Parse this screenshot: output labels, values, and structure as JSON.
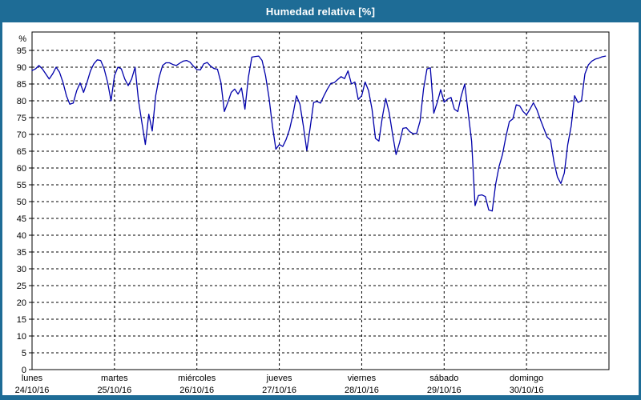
{
  "window": {
    "title": "Humedad relativa [%]"
  },
  "colors": {
    "frame": "#1e6c96",
    "frame_edge": "#0f4e78",
    "background": "#ffffff",
    "plot_border": "#000000",
    "grid": "#000000",
    "text": "#000000",
    "title_text": "#ffffff",
    "line": "#0000aa"
  },
  "chart_data": {
    "type": "line",
    "title": "Humedad relativa [%]",
    "ylabel": "%",
    "ylim": [
      0,
      100
    ],
    "ytick_step": 5,
    "ytick_label_max": 95,
    "grid": true,
    "legend": "none",
    "points_per_day": 24,
    "x_unit": "hour",
    "days": [
      {
        "name": "lunes",
        "date": "24/10/16"
      },
      {
        "name": "martes",
        "date": "25/10/16"
      },
      {
        "name": "miércoles",
        "date": "26/10/16"
      },
      {
        "name": "jueves",
        "date": "27/10/16"
      },
      {
        "name": "viernes",
        "date": "28/10/16"
      },
      {
        "name": "sábado",
        "date": "29/10/16"
      },
      {
        "name": "domingo",
        "date": "30/10/16"
      }
    ],
    "series": [
      {
        "name": "Humedad relativa",
        "color": "#0000aa",
        "values": [
          89,
          89.5,
          90.5,
          89.5,
          88,
          86.5,
          88,
          90,
          88.5,
          85.5,
          81.5,
          79,
          79.3,
          83,
          85.3,
          82.5,
          85.5,
          88.9,
          91,
          92.2,
          92,
          89.5,
          85.5,
          80,
          87.5,
          90,
          89.5,
          86.5,
          84.5,
          86.5,
          90,
          80,
          73.5,
          67,
          76,
          71,
          81.5,
          87,
          90.5,
          91.3,
          91.3,
          90.8,
          90.5,
          91.2,
          91.8,
          92,
          91.5,
          90.3,
          89.3,
          89.2,
          91,
          91.4,
          90.3,
          89.6,
          89.4,
          85.5,
          76.8,
          79.5,
          82.5,
          83.5,
          82,
          83.8,
          77.5,
          87,
          93,
          93.2,
          93.3,
          92,
          87.5,
          81,
          72.5,
          65.6,
          67,
          66.4,
          68.5,
          71.5,
          76,
          81.5,
          79,
          72.5,
          65.2,
          72,
          79.5,
          79.8,
          79.3,
          81.5,
          83.5,
          85.2,
          85.4,
          86.3,
          87.2,
          86.6,
          88.9,
          85,
          85.6,
          80.4,
          81.5,
          85.6,
          83,
          77.5,
          68.8,
          68,
          75,
          80.7,
          76.5,
          70,
          64,
          67.5,
          71.8,
          72,
          70.8,
          70.2,
          70.3,
          74,
          83.5,
          89.5,
          89.8,
          76.3,
          79.5,
          83.3,
          79.6,
          80.5,
          81,
          77.5,
          76.8,
          81.5,
          85,
          76.5,
          68,
          48.8,
          51.8,
          52,
          51.5,
          47.5,
          47.2,
          55.2,
          60.5,
          64,
          69.3,
          73.8,
          74.6,
          78.8,
          78.5,
          76.8,
          75.8,
          77.5,
          79.4,
          77.4,
          74.5,
          71.8,
          69.2,
          68.3,
          61.8,
          57.3,
          55.4,
          58.5,
          67,
          72.5,
          81.5,
          79.5,
          80,
          88,
          90.7,
          91.8,
          92.4,
          92.7,
          93.1,
          93.3
        ]
      }
    ]
  }
}
